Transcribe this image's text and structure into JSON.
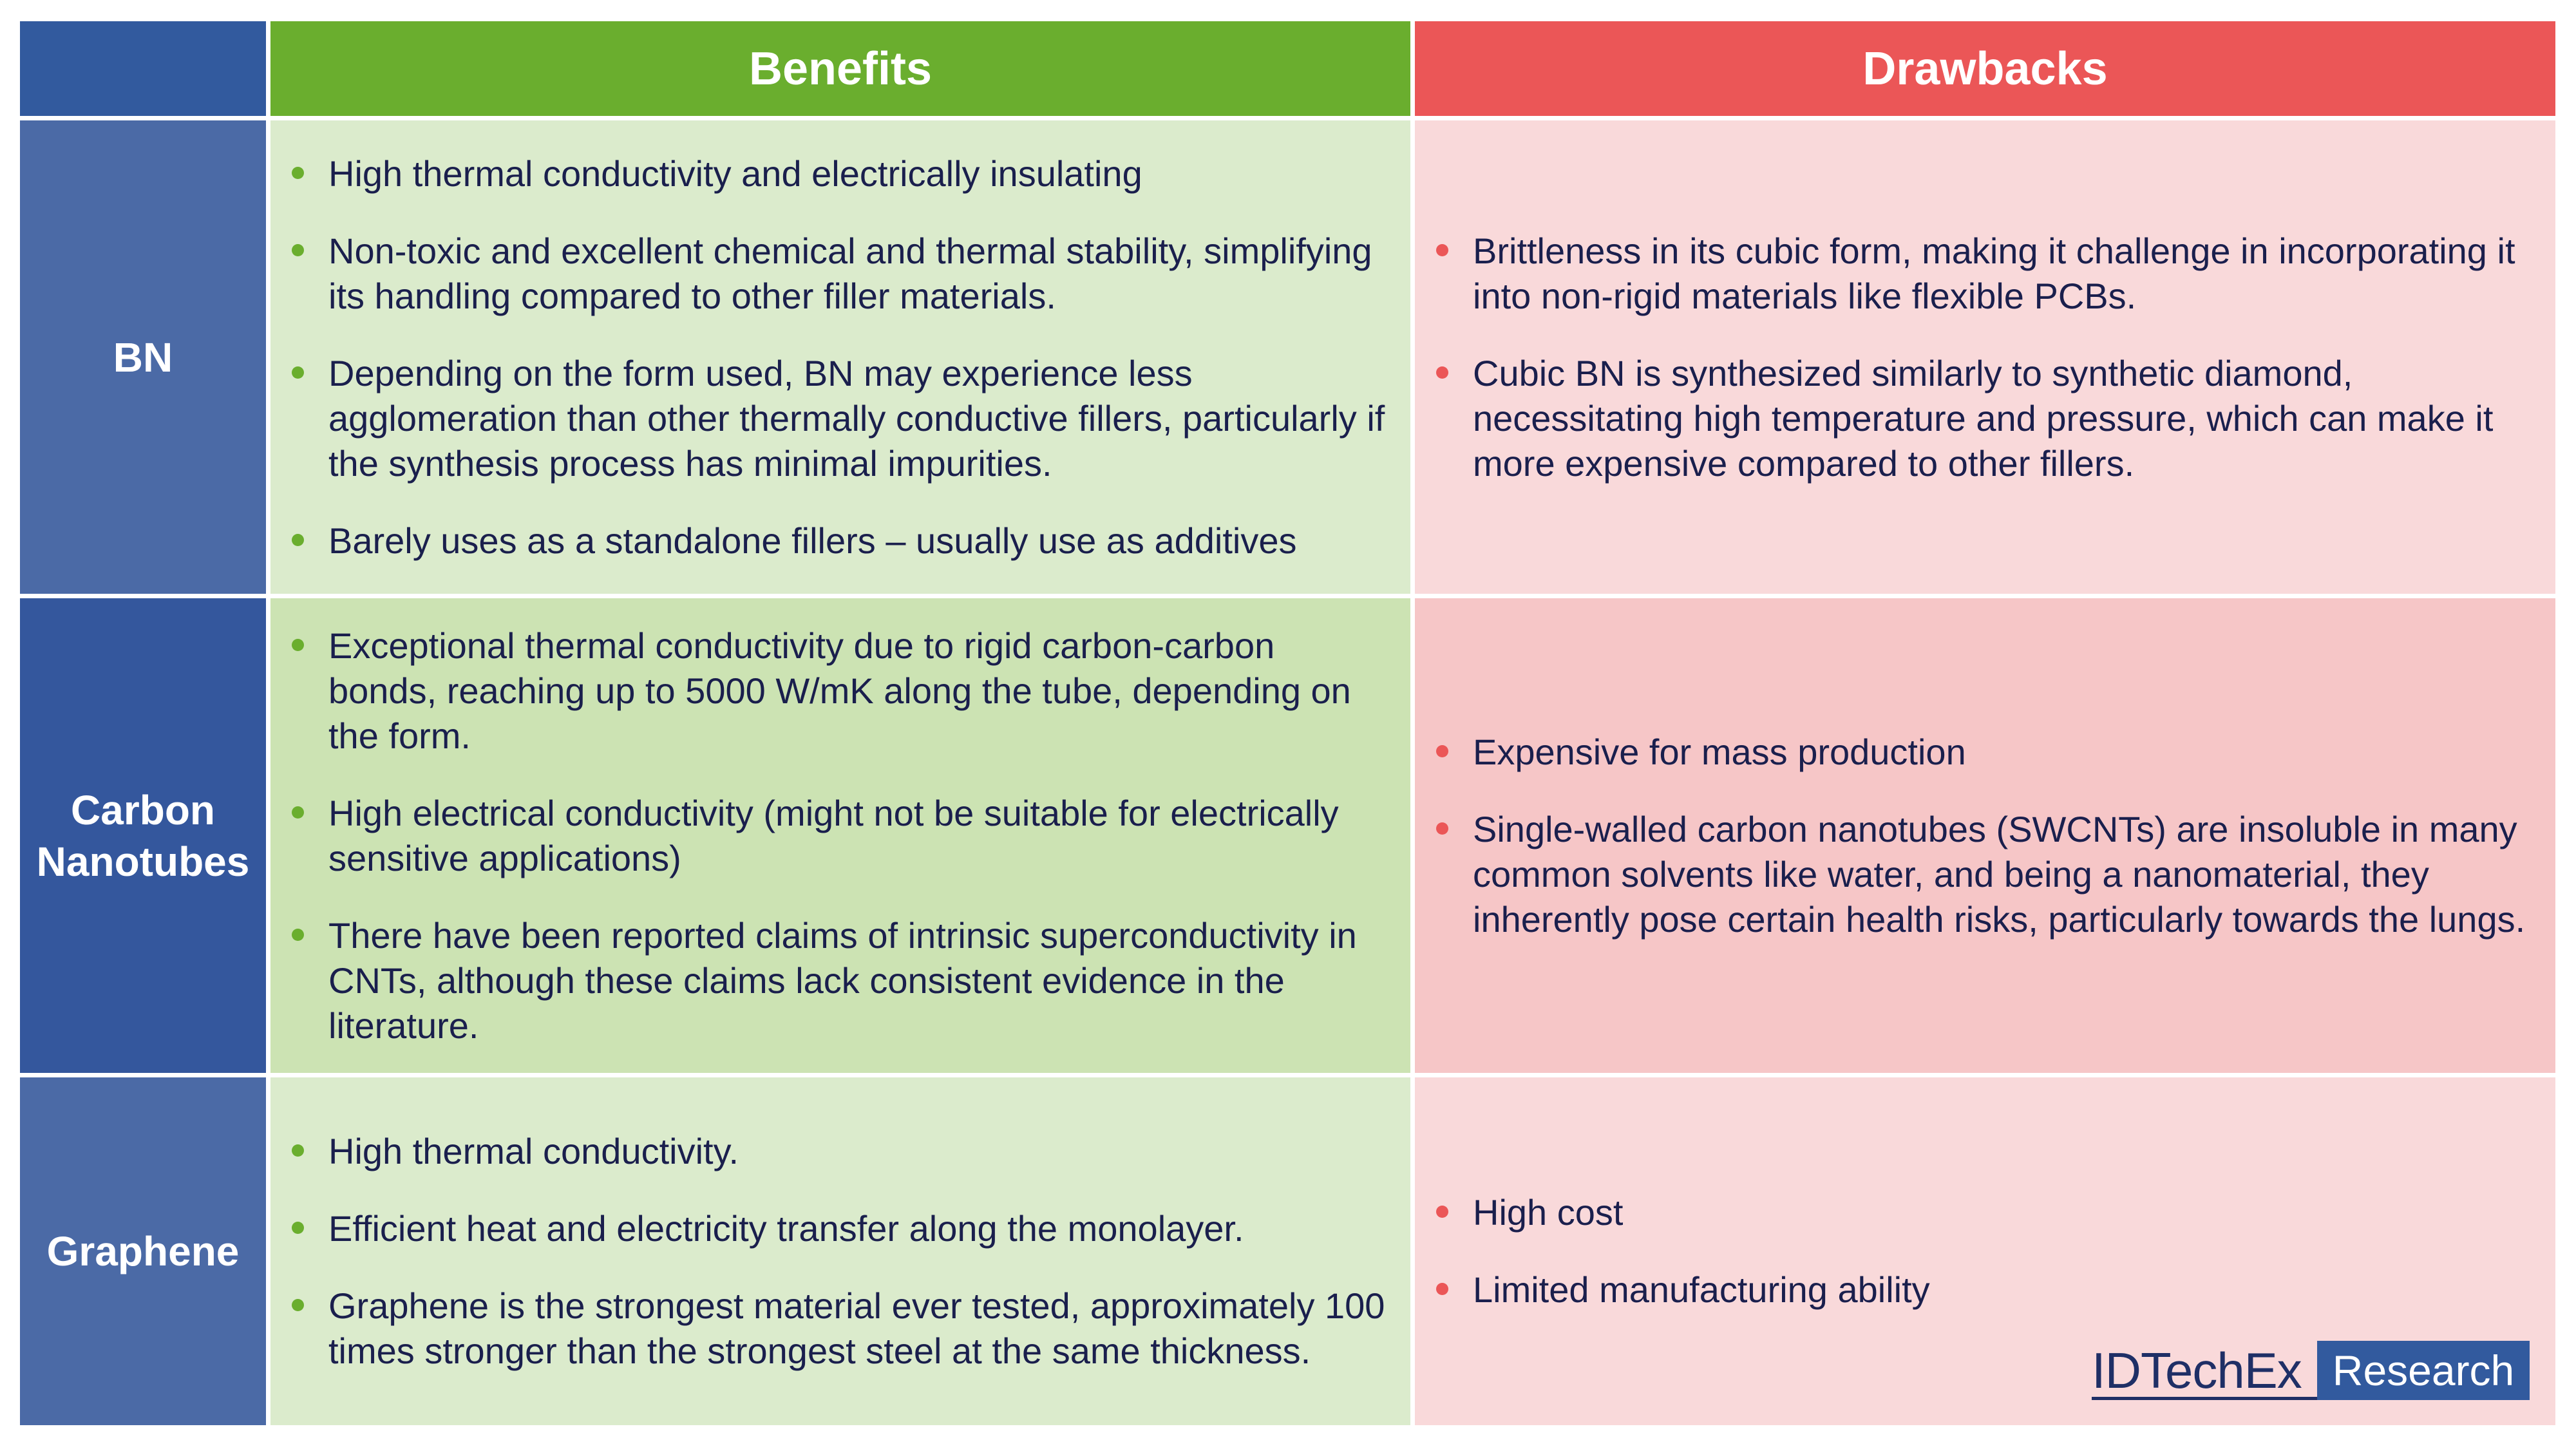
{
  "header": {
    "benefits_label": "Benefits",
    "drawbacks_label": "Drawbacks"
  },
  "rows": [
    {
      "label": "BN",
      "benefits": [
        "High thermal conductivity and electrically insulating",
        "Non-toxic and excellent chemical and thermal stability, simplifying its handling compared to other filler materials.",
        "Depending on the form used, BN may experience less agglomeration than other thermally conductive fillers, particularly if the synthesis process has minimal impurities.",
        "Barely uses as a standalone fillers – usually use as additives"
      ],
      "drawbacks": [
        "Brittleness in its cubic form, making it challenge in incorporating it into non-rigid materials like flexible PCBs.",
        "Cubic BN is synthesized similarly to synthetic diamond, necessitating high temperature and pressure, which can make it more expensive compared to other fillers."
      ]
    },
    {
      "label": "Carbon Nanotubes",
      "benefits": [
        "Exceptional thermal conductivity due to rigid carbon-carbon bonds, reaching up to 5000 W/mK along the tube, depending on the form.",
        "High electrical conductivity (might not be suitable for electrically sensitive applications)",
        "There have been reported claims of intrinsic superconductivity in CNTs, although these claims lack consistent evidence in the literature."
      ],
      "drawbacks": [
        "Expensive for mass production",
        "Single-walled carbon nanotubes (SWCNTs) are insoluble in many common solvents like water, and being a nanomaterial, they inherently pose certain health risks, particularly towards the lungs."
      ]
    },
    {
      "label": "Graphene",
      "benefits": [
        "High thermal conductivity.",
        "Efficient heat and electricity transfer along the monolayer.",
        "Graphene is the strongest material ever tested, approximately 100 times stronger than the strongest steel at the same thickness."
      ],
      "drawbacks": [
        "High cost",
        "Limited manufacturing ability"
      ]
    }
  ],
  "logo": {
    "name": "IDTechEx",
    "tag": "Research"
  },
  "colors": {
    "header_empty": "#325a9e",
    "benefits_accent": "#6aae2e",
    "drawbacks_accent": "#eb5657",
    "text": "#1a1f4d"
  }
}
